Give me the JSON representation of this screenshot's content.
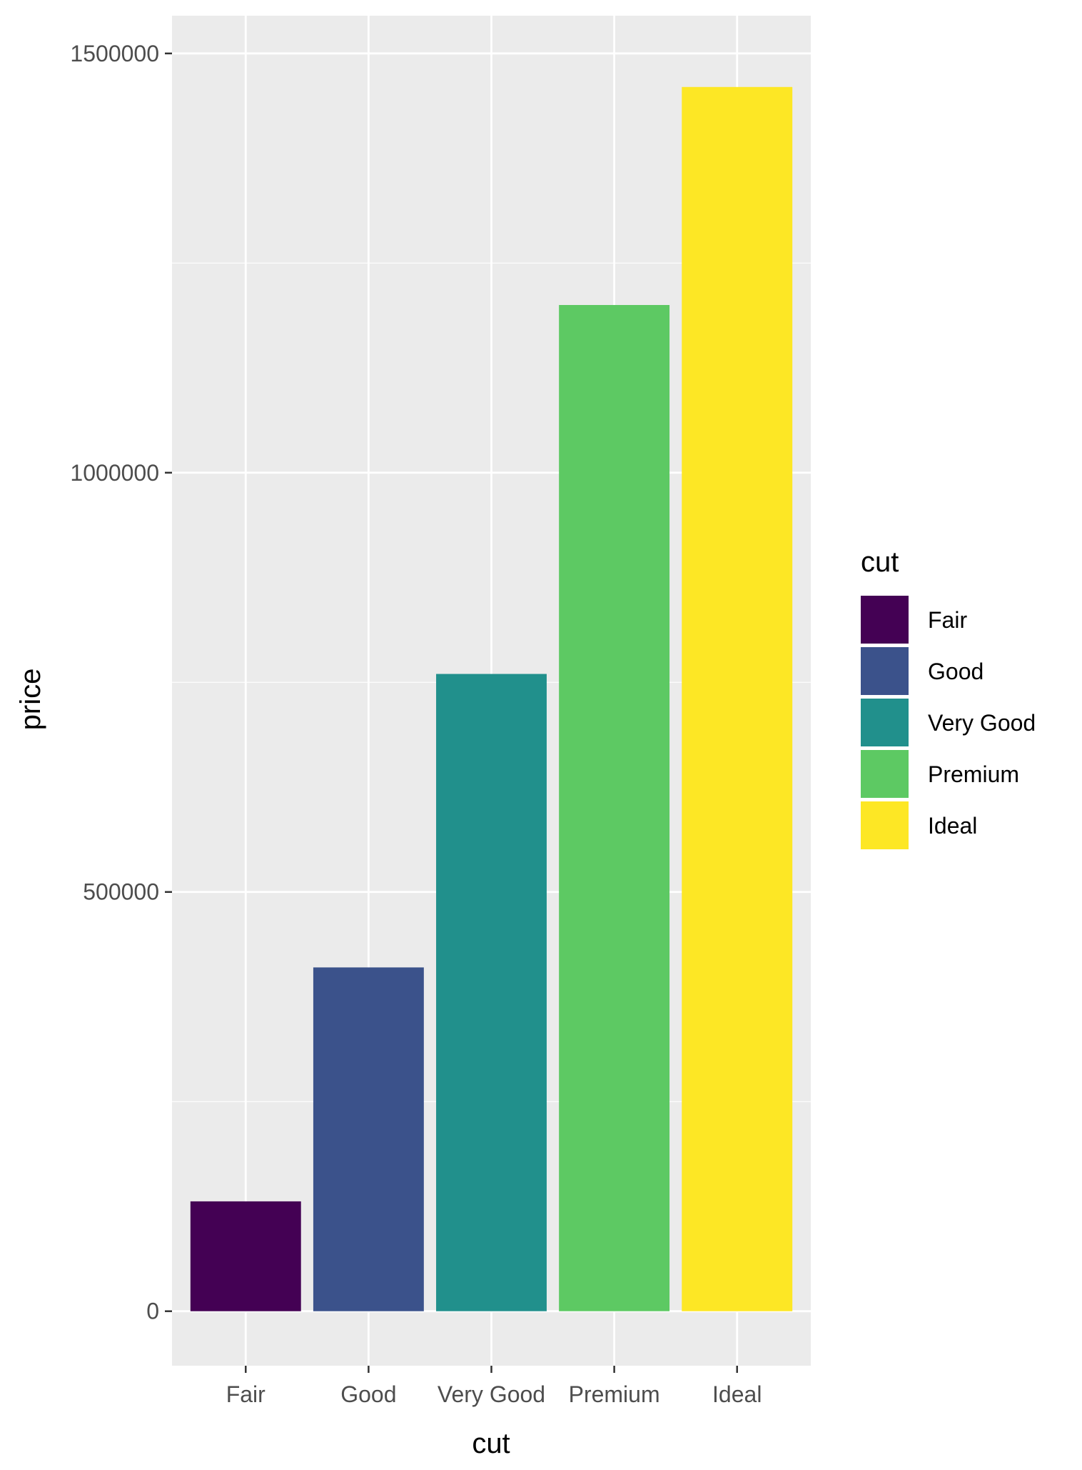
{
  "chart_data": {
    "type": "bar",
    "title": "",
    "xlabel": "cut",
    "ylabel": "price",
    "categories": [
      "Fair",
      "Good",
      "Very Good",
      "Premium",
      "Ideal"
    ],
    "values": [
      131000,
      410000,
      760000,
      1200000,
      1460000
    ],
    "ylim": [
      -65000,
      1545000
    ],
    "yticks": [
      0,
      500000,
      1000000,
      1500000
    ],
    "ytick_labels": [
      "0",
      "500000",
      "1000000",
      "1500000"
    ],
    "minor_yticks": [
      250000,
      750000,
      1250000
    ],
    "grid": true,
    "legend": {
      "title": "cut",
      "position": "right",
      "entries": [
        "Fair",
        "Good",
        "Very Good",
        "Premium",
        "Ideal"
      ]
    },
    "colors": [
      "#440154",
      "#3b528b",
      "#21908c",
      "#5dc963",
      "#fde725"
    ],
    "panel_background": "#ebebeb",
    "grid_color": "#ffffff"
  }
}
